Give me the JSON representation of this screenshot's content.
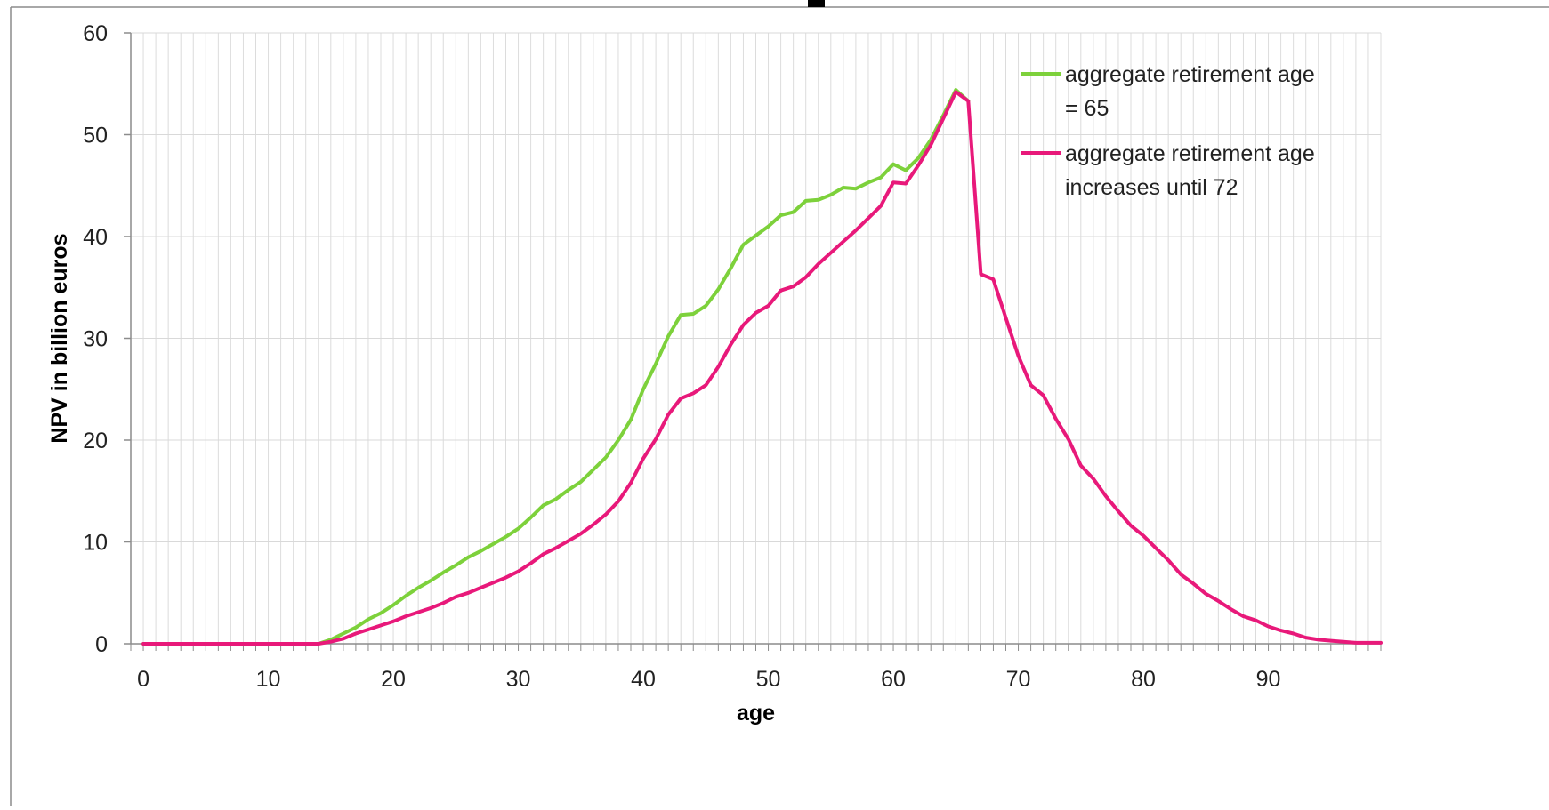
{
  "chart_data": {
    "type": "line",
    "title": "",
    "xlabel": "age",
    "ylabel": "NPV in billion euros",
    "xlim": [
      -1,
      99
    ],
    "ylim": [
      0,
      60
    ],
    "x_ticks": [
      0,
      10,
      20,
      30,
      40,
      50,
      60,
      70,
      80,
      90
    ],
    "y_ticks": [
      0,
      10,
      20,
      30,
      40,
      50,
      60
    ],
    "grid": "vertical every 1 year, horizontal every 10",
    "legend_position": "top-right",
    "series": [
      {
        "name": "aggregate retirement age = 65",
        "color": "#7DD13B",
        "points": [
          [
            0,
            0
          ],
          [
            14,
            0
          ],
          [
            15,
            0.4
          ],
          [
            16,
            1.0
          ],
          [
            17,
            1.6
          ],
          [
            18,
            2.4
          ],
          [
            19,
            3.0
          ],
          [
            20,
            3.8
          ],
          [
            21,
            4.7
          ],
          [
            22,
            5.5
          ],
          [
            23,
            6.2
          ],
          [
            24,
            7.0
          ],
          [
            25,
            7.7
          ],
          [
            26,
            8.5
          ],
          [
            27,
            9.1
          ],
          [
            28,
            9.8
          ],
          [
            29,
            10.5
          ],
          [
            30,
            11.3
          ],
          [
            31,
            12.4
          ],
          [
            32,
            13.6
          ],
          [
            33,
            14.2
          ],
          [
            34,
            15.1
          ],
          [
            35,
            15.9
          ],
          [
            36,
            17.1
          ],
          [
            37,
            18.3
          ],
          [
            38,
            20.0
          ],
          [
            39,
            22.0
          ],
          [
            40,
            25.0
          ],
          [
            41,
            27.5
          ],
          [
            42,
            30.2
          ],
          [
            43,
            32.3
          ],
          [
            44,
            32.4
          ],
          [
            45,
            33.2
          ],
          [
            46,
            34.8
          ],
          [
            47,
            36.9
          ],
          [
            48,
            39.2
          ],
          [
            49,
            40.1
          ],
          [
            50,
            41.0
          ],
          [
            51,
            42.1
          ],
          [
            52,
            42.4
          ],
          [
            53,
            43.5
          ],
          [
            54,
            43.6
          ],
          [
            55,
            44.1
          ],
          [
            56,
            44.8
          ],
          [
            57,
            44.7
          ],
          [
            58,
            45.3
          ],
          [
            59,
            45.8
          ],
          [
            60,
            47.1
          ],
          [
            61,
            46.5
          ],
          [
            62,
            47.7
          ],
          [
            63,
            49.5
          ],
          [
            64,
            51.9
          ],
          [
            65,
            54.4
          ],
          [
            66,
            53.3
          ]
        ]
      },
      {
        "name": "aggregate retirement age increases until 72",
        "color": "#E8197A",
        "points": [
          [
            0,
            0
          ],
          [
            14,
            0
          ],
          [
            15,
            0.2
          ],
          [
            16,
            0.5
          ],
          [
            17,
            1.0
          ],
          [
            18,
            1.4
          ],
          [
            19,
            1.8
          ],
          [
            20,
            2.2
          ],
          [
            21,
            2.7
          ],
          [
            22,
            3.1
          ],
          [
            23,
            3.5
          ],
          [
            24,
            4.0
          ],
          [
            25,
            4.6
          ],
          [
            26,
            5.0
          ],
          [
            27,
            5.5
          ],
          [
            28,
            6.0
          ],
          [
            29,
            6.5
          ],
          [
            30,
            7.1
          ],
          [
            31,
            7.9
          ],
          [
            32,
            8.8
          ],
          [
            33,
            9.4
          ],
          [
            34,
            10.1
          ],
          [
            35,
            10.8
          ],
          [
            36,
            11.7
          ],
          [
            37,
            12.7
          ],
          [
            38,
            14.0
          ],
          [
            39,
            15.8
          ],
          [
            40,
            18.2
          ],
          [
            41,
            20.1
          ],
          [
            42,
            22.5
          ],
          [
            43,
            24.1
          ],
          [
            44,
            24.6
          ],
          [
            45,
            25.4
          ],
          [
            46,
            27.2
          ],
          [
            47,
            29.4
          ],
          [
            48,
            31.3
          ],
          [
            49,
            32.5
          ],
          [
            50,
            33.2
          ],
          [
            51,
            34.7
          ],
          [
            52,
            35.1
          ],
          [
            53,
            36.0
          ],
          [
            54,
            37.3
          ],
          [
            55,
            38.4
          ],
          [
            56,
            39.5
          ],
          [
            57,
            40.6
          ],
          [
            58,
            41.8
          ],
          [
            59,
            43.0
          ],
          [
            60,
            45.3
          ],
          [
            61,
            45.2
          ],
          [
            62,
            47.0
          ],
          [
            63,
            49.0
          ],
          [
            64,
            51.6
          ],
          [
            65,
            54.2
          ],
          [
            66,
            53.3
          ],
          [
            67,
            36.3
          ],
          [
            68,
            35.8
          ],
          [
            69,
            32.0
          ],
          [
            70,
            28.3
          ],
          [
            71,
            25.4
          ],
          [
            72,
            24.4
          ],
          [
            73,
            22.1
          ],
          [
            74,
            20.1
          ],
          [
            75,
            17.5
          ],
          [
            76,
            16.2
          ],
          [
            77,
            14.5
          ],
          [
            78,
            13.0
          ],
          [
            79,
            11.6
          ],
          [
            80,
            10.6
          ],
          [
            81,
            9.4
          ],
          [
            82,
            8.2
          ],
          [
            83,
            6.8
          ],
          [
            84,
            5.9
          ],
          [
            85,
            4.9
          ],
          [
            86,
            4.2
          ],
          [
            87,
            3.4
          ],
          [
            88,
            2.7
          ],
          [
            89,
            2.3
          ],
          [
            90,
            1.7
          ],
          [
            91,
            1.3
          ],
          [
            92,
            1.0
          ],
          [
            93,
            0.6
          ],
          [
            94,
            0.4
          ],
          [
            95,
            0.3
          ],
          [
            96,
            0.2
          ],
          [
            97,
            0.1
          ],
          [
            98,
            0.1
          ],
          [
            99,
            0.1
          ]
        ]
      }
    ]
  }
}
